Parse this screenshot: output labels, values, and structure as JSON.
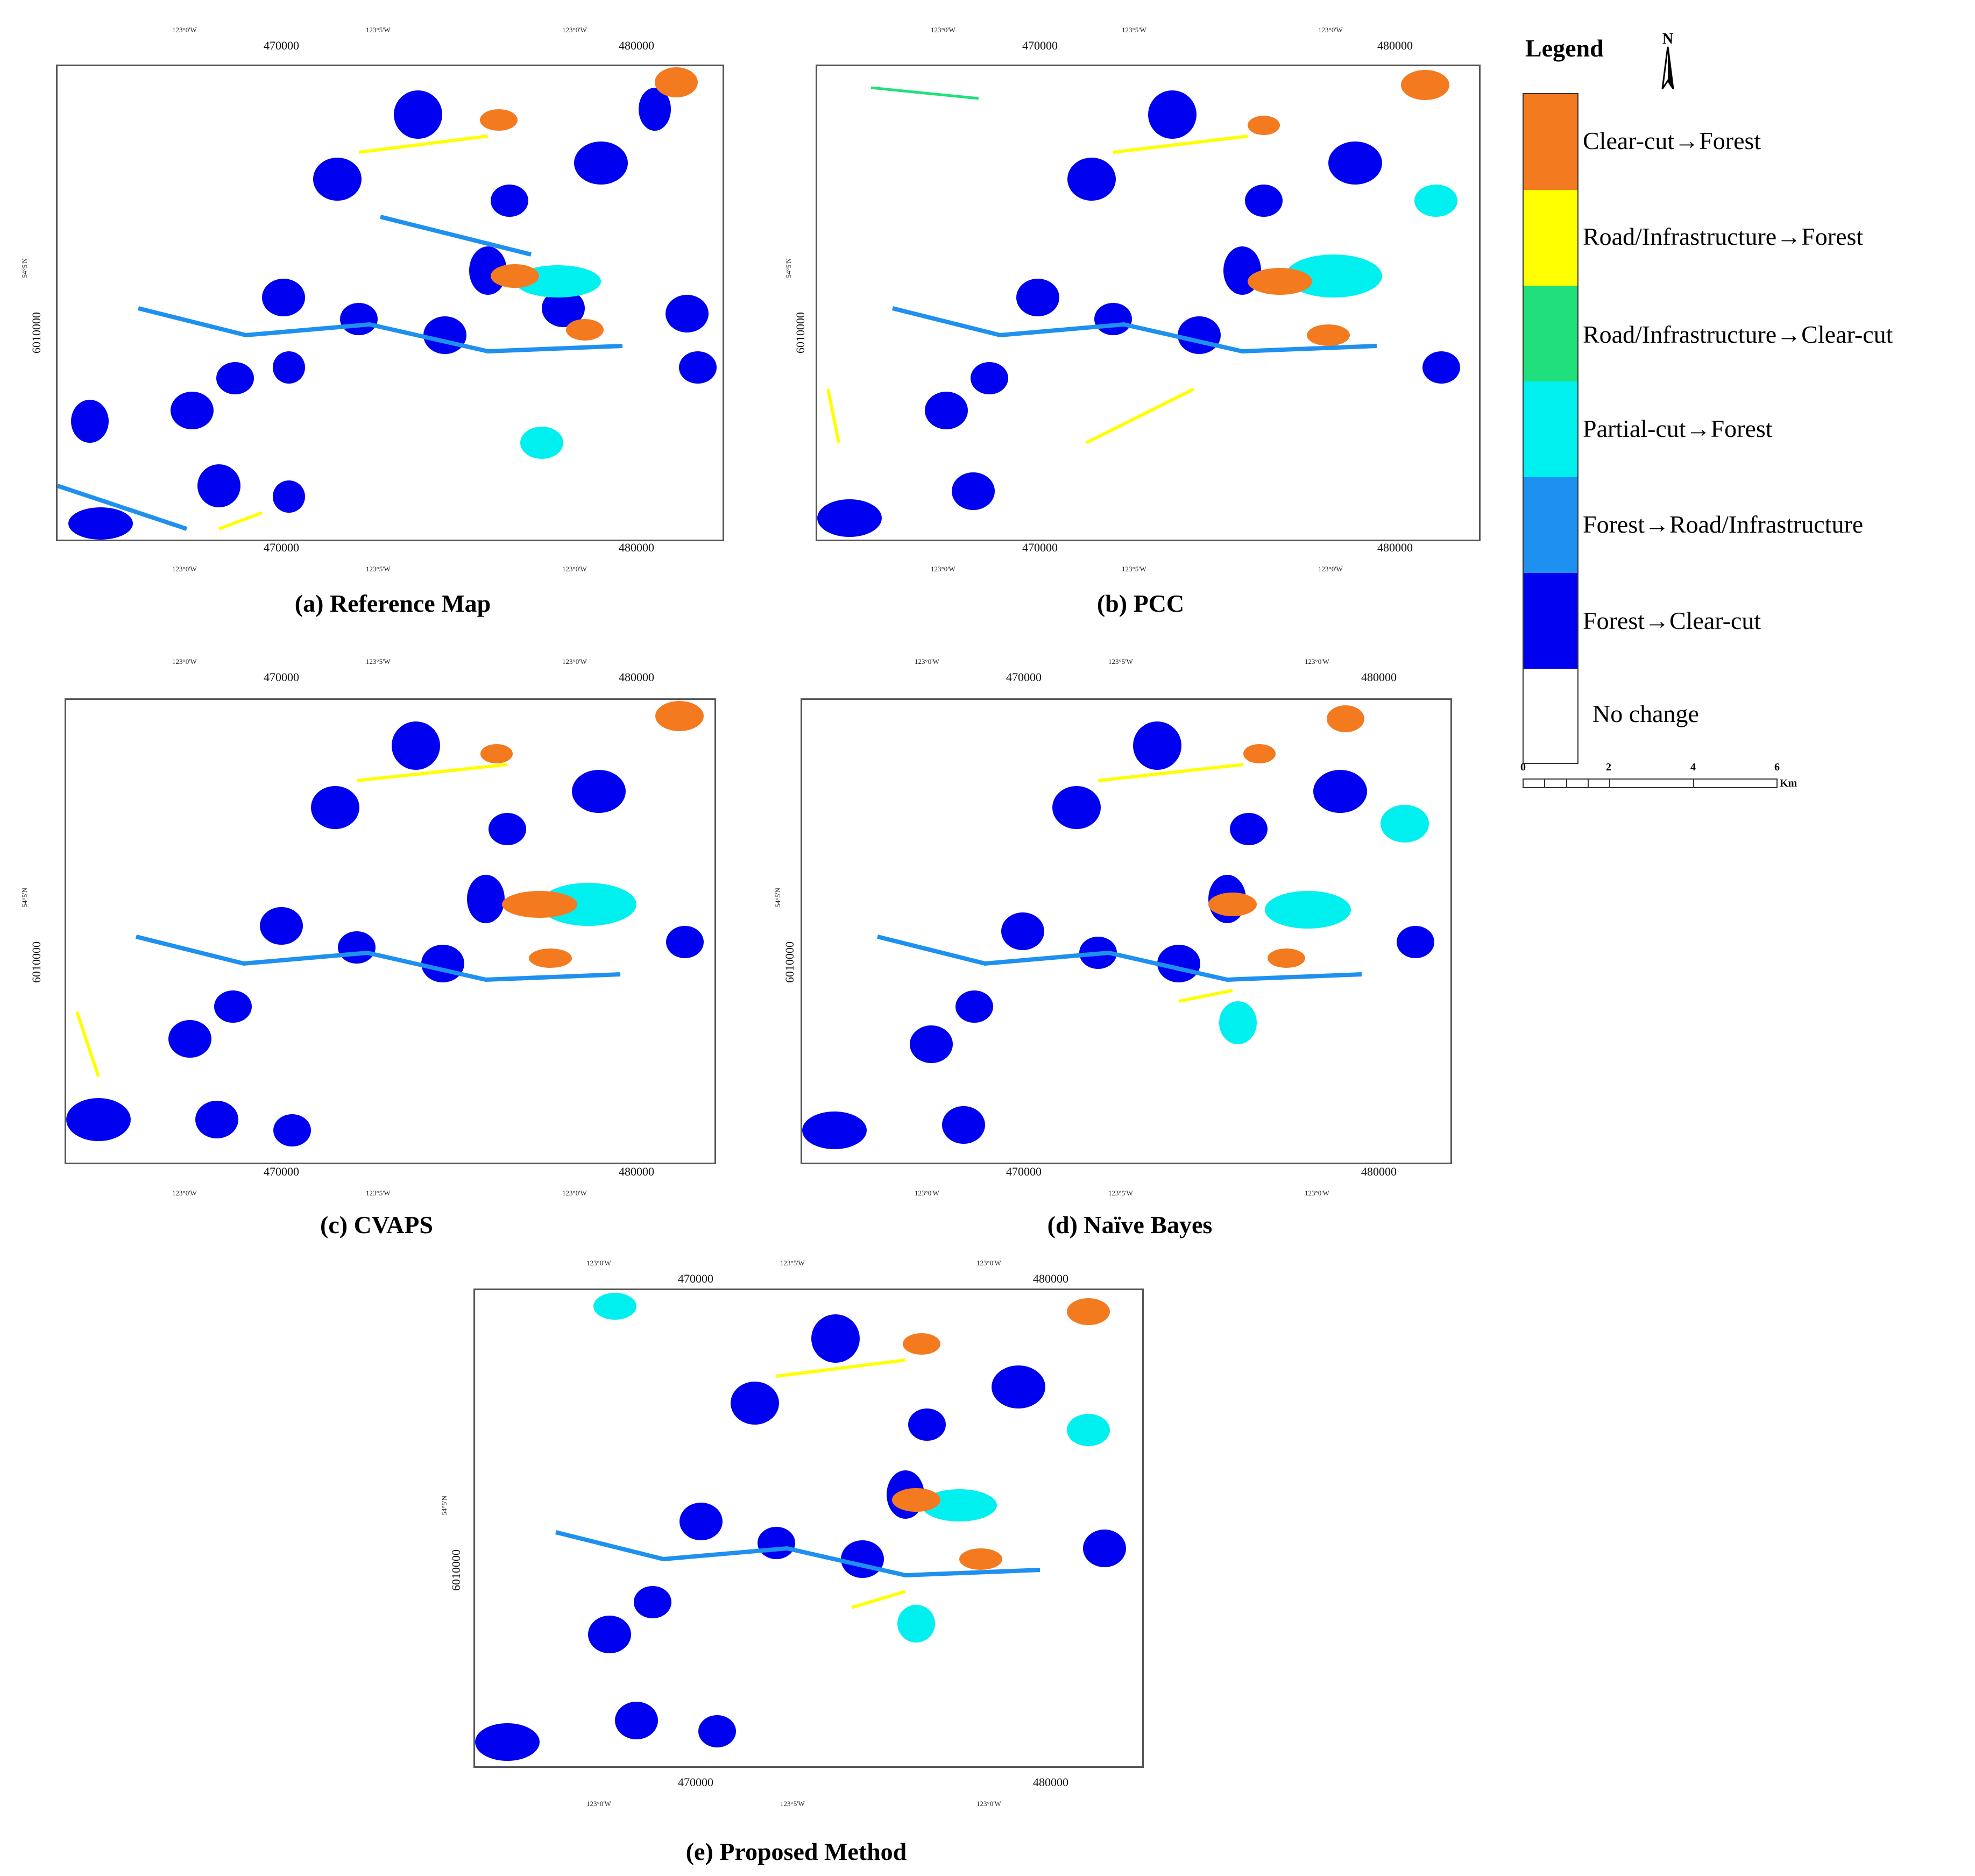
{
  "panels": [
    {
      "id": "a",
      "caption": "(a) Reference Map"
    },
    {
      "id": "b",
      "caption": "(b) PCC"
    },
    {
      "id": "c",
      "caption": "(c) CVAPS"
    },
    {
      "id": "d",
      "caption": "(d) Naïve Bayes"
    },
    {
      "id": "e",
      "caption": "(e) Proposed Method"
    }
  ],
  "axes": {
    "top_ticks": [
      "123°0'W",
      "123°5'W",
      "123°0'W"
    ],
    "easting_1": "470000",
    "easting_2": "480000",
    "left_lat": "54°5'N",
    "northing": "6010000"
  },
  "legend": {
    "title": "Legend",
    "north_label": "N",
    "items": [
      {
        "label": "Clear-cut→Forest",
        "color": "#F47A20"
      },
      {
        "label": "Road/Infrastructure→Forest",
        "color": "#FFFF00"
      },
      {
        "label": "Road/Infrastructure→Clear-cut",
        "color": "#1FE07A"
      },
      {
        "label": "Partial-cut→Forest",
        "color": "#00F0F0"
      },
      {
        "label": "Forest→Road/Infrastructure",
        "color": "#1E90F0"
      },
      {
        "label": "Forest→Clear-cut",
        "color": "#0000F0"
      },
      {
        "label": "No change",
        "color": "#FFFFFF"
      }
    ],
    "scale": {
      "ticks": [
        "0",
        "2",
        "4",
        "6"
      ],
      "unit": "Km"
    }
  }
}
